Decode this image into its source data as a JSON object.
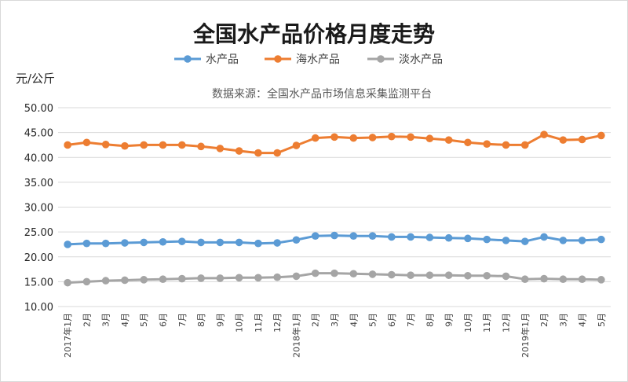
{
  "chart_data": {
    "type": "line",
    "title": "全国水产品价格月度走势",
    "ylabel": "元/公斤",
    "source": "数据来源：全国水产品市场信息采集监测平台",
    "ylim": [
      10,
      50
    ],
    "yticks": [
      "10.00",
      "15.00",
      "20.00",
      "25.00",
      "30.00",
      "35.00",
      "40.00",
      "45.00",
      "50.00"
    ],
    "legend_position": "top-center",
    "grid": true,
    "categories": [
      "2017年1月",
      "2月",
      "3月",
      "4月",
      "5月",
      "6月",
      "7月",
      "8月",
      "9月",
      "10月",
      "11月",
      "12月",
      "2018年1月",
      "2月",
      "3月",
      "4月",
      "5月",
      "6月",
      "7月",
      "8月",
      "9月",
      "10月",
      "11月",
      "12月",
      "2019年1月",
      "2月",
      "3月",
      "4月",
      "5月"
    ],
    "series": [
      {
        "name": "水产品",
        "color": "#5b9bd5",
        "values": [
          22.5,
          22.7,
          22.7,
          22.8,
          22.9,
          23.0,
          23.1,
          22.9,
          22.9,
          22.9,
          22.7,
          22.8,
          23.4,
          24.2,
          24.3,
          24.2,
          24.2,
          24.0,
          24.0,
          23.9,
          23.8,
          23.7,
          23.5,
          23.3,
          23.1,
          24.0,
          23.3,
          23.3,
          23.5
        ]
      },
      {
        "name": "海水产品",
        "color": "#ed7d31",
        "values": [
          42.5,
          43.0,
          42.6,
          42.3,
          42.5,
          42.5,
          42.5,
          42.2,
          41.8,
          41.3,
          40.9,
          40.9,
          42.4,
          43.9,
          44.1,
          43.9,
          44.0,
          44.2,
          44.1,
          43.8,
          43.5,
          43.0,
          42.7,
          42.5,
          42.5,
          44.6,
          43.5,
          43.6,
          44.4
        ]
      },
      {
        "name": "淡水产品",
        "color": "#a5a5a5",
        "values": [
          14.8,
          15.0,
          15.2,
          15.3,
          15.4,
          15.5,
          15.6,
          15.7,
          15.7,
          15.8,
          15.8,
          15.9,
          16.1,
          16.7,
          16.7,
          16.6,
          16.5,
          16.4,
          16.3,
          16.3,
          16.3,
          16.2,
          16.2,
          16.1,
          15.5,
          15.6,
          15.5,
          15.5,
          15.4
        ]
      }
    ]
  }
}
